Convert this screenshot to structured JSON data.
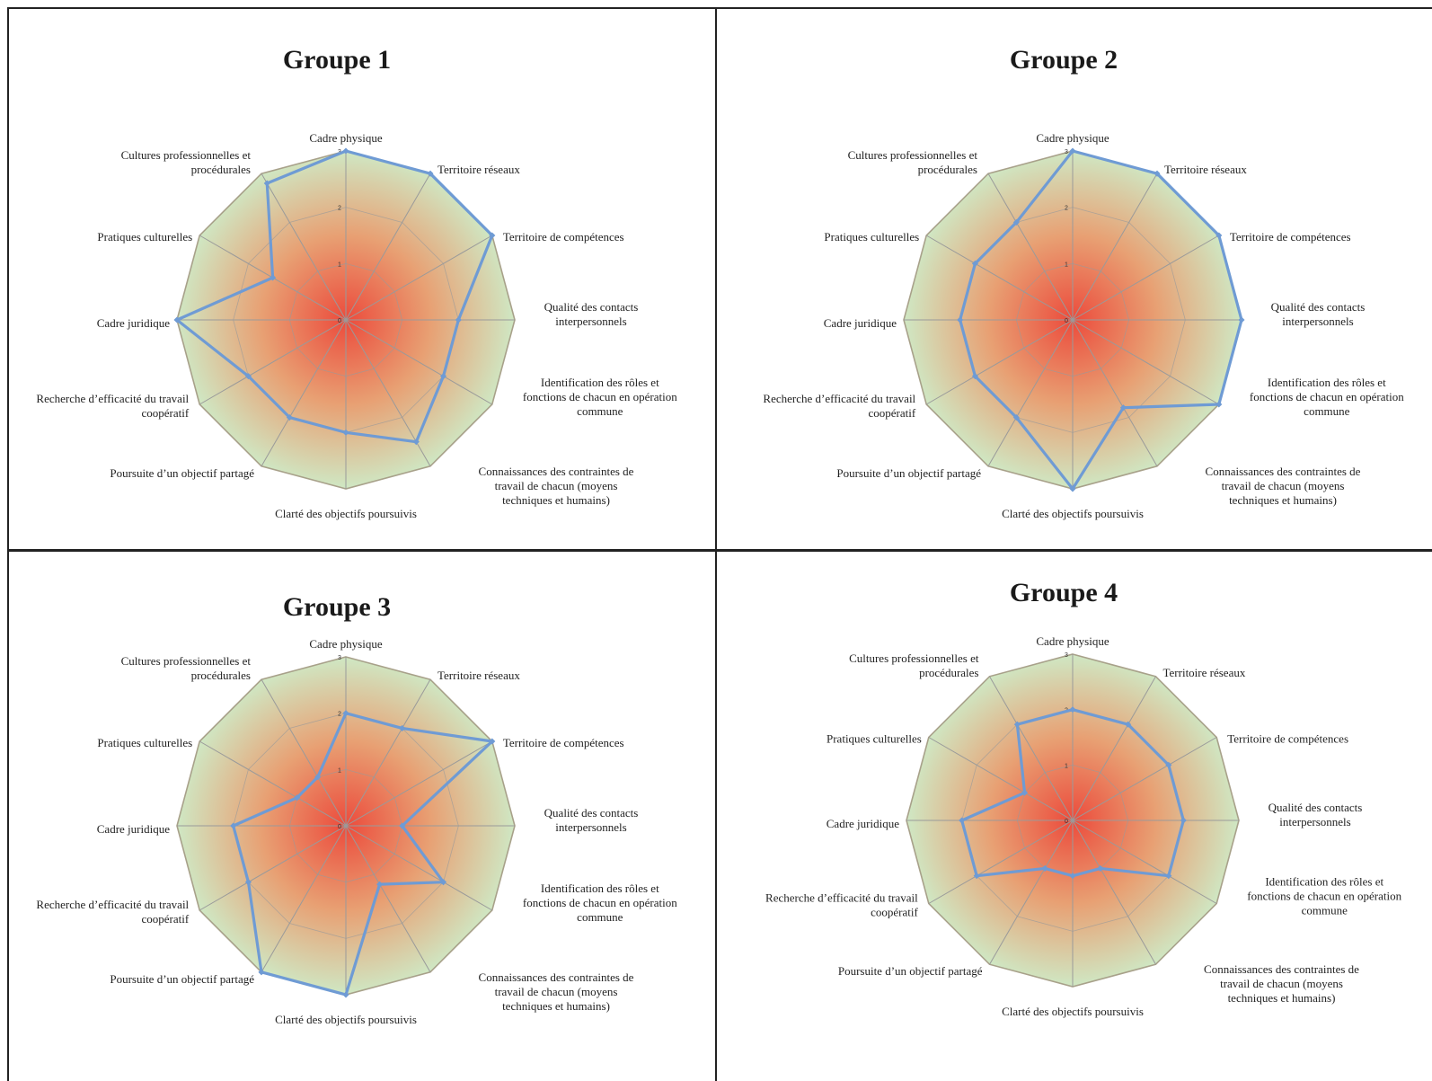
{
  "figure": {
    "colors": {
      "border": "#222222",
      "series_line": "#6f9bd4",
      "outer_ring": "#a8a18a",
      "spoke": "#9a9a9a",
      "fill_center": "#ec4b3c",
      "fill_mid": "#e8a073",
      "fill_edge": "#cfe8c4"
    }
  },
  "chart_data": [
    {
      "type": "radar",
      "title": "Groupe 1",
      "axes": [
        "Cadre physique",
        "Territoire réseaux",
        "Territoire de compétences",
        "Qualité des contacts interpersonnels",
        "Identification des rôles et fonctions de chacun en opération commune",
        "Connaissances des contraintes de travail de chacun (moyens techniques et humains)",
        "Clarté des objectifs poursuivis",
        "Poursuite d’un objectif partagé",
        "Recherche d’efficacité du travail coopératif",
        "Cadre juridique",
        "Pratiques culturelles",
        "Cultures professionnelles et procédurales"
      ],
      "axis_labels": [
        [
          "Cadre physique"
        ],
        [
          "Territoire réseaux"
        ],
        [
          "Territoire de compétences"
        ],
        [
          "Qualité des contacts",
          "interpersonnels"
        ],
        [
          "Identification des rôles et",
          "fonctions de chacun en opération",
          "commune"
        ],
        [
          "Connaissances des contraintes de",
          "travail de chacun (moyens",
          "techniques et humains)"
        ],
        [
          "Clarté des objectifs poursuivis"
        ],
        [
          "Poursuite d’un objectif partagé"
        ],
        [
          "Recherche d’efficacité du travail",
          "coopératif"
        ],
        [
          "Cadre juridique"
        ],
        [
          "Pratiques culturelles"
        ],
        [
          "Cultures professionnelles et",
          "procédurales"
        ]
      ],
      "ticks": [
        "0",
        "1",
        "2",
        "3"
      ],
      "rmax": 3,
      "values": [
        3,
        3,
        3,
        2,
        2,
        2.5,
        2,
        2,
        2,
        3,
        1.5,
        2.8
      ]
    },
    {
      "type": "radar",
      "title": "Groupe 2",
      "axes": [
        "Cadre physique",
        "Territoire réseaux",
        "Territoire de compétences",
        "Qualité des contacts interpersonnels",
        "Identification des rôles et fonctions de chacun en opération commune",
        "Connaissances des contraintes de travail de chacun (moyens techniques et humains)",
        "Clarté des objectifs poursuivis",
        "Poursuite d’un objectif partagé",
        "Recherche d’efficacité du travail coopératif",
        "Cadre juridique",
        "Pratiques culturelles",
        "Cultures professionnelles et procédurales"
      ],
      "axis_labels": [
        [
          "Cadre physique"
        ],
        [
          "Territoire réseaux"
        ],
        [
          "Territoire de compétences"
        ],
        [
          "Qualité des contacts",
          "interpersonnels"
        ],
        [
          "Identification des rôles et",
          "fonctions de chacun en opération",
          "commune"
        ],
        [
          "Connaissances des contraintes de",
          "travail de chacun (moyens",
          "techniques et humains)"
        ],
        [
          "Clarté des objectifs poursuivis"
        ],
        [
          "Poursuite d’un objectif partagé"
        ],
        [
          "Recherche d’efficacité du travail",
          "coopératif"
        ],
        [
          "Cadre juridique"
        ],
        [
          "Pratiques culturelles"
        ],
        [
          "Cultures professionnelles et",
          "procédurales"
        ]
      ],
      "ticks": [
        "0",
        "1",
        "2",
        "3"
      ],
      "rmax": 3,
      "values": [
        3,
        3,
        3,
        3,
        3,
        1.8,
        3,
        2,
        2,
        2,
        2,
        2
      ]
    },
    {
      "type": "radar",
      "title": "Groupe 3",
      "axes": [
        "Cadre physique",
        "Territoire réseaux",
        "Territoire de compétences",
        "Qualité des contacts interpersonnels",
        "Identification des rôles et fonctions de chacun en opération commune",
        "Connaissances des contraintes de travail de chacun (moyens techniques et humains)",
        "Clarté des objectifs poursuivis",
        "Poursuite d’un objectif partagé",
        "Recherche d’efficacité du travail coopératif",
        "Cadre juridique",
        "Pratiques culturelles",
        "Cultures professionnelles et procédurales"
      ],
      "axis_labels": [
        [
          "Cadre physique"
        ],
        [
          "Territoire réseaux"
        ],
        [
          "Territoire de compétences"
        ],
        [
          "Qualité des contacts",
          "interpersonnels"
        ],
        [
          "Identification des rôles et",
          "fonctions de chacun en opération",
          "commune"
        ],
        [
          "Connaissances des contraintes de",
          "travail de chacun (moyens",
          "techniques et humains)"
        ],
        [
          "Clarté des objectifs poursuivis"
        ],
        [
          "Poursuite d’un objectif partagé"
        ],
        [
          "Recherche d’efficacité du travail",
          "coopératif"
        ],
        [
          "Cadre juridique"
        ],
        [
          "Pratiques culturelles"
        ],
        [
          "Cultures professionnelles et",
          "procédurales"
        ]
      ],
      "ticks": [
        "0",
        "1",
        "2",
        "3"
      ],
      "rmax": 3,
      "values": [
        2,
        2,
        3,
        1,
        2,
        1.2,
        3,
        3,
        2,
        2,
        1,
        1
      ]
    },
    {
      "type": "radar",
      "title": "Groupe 4",
      "axes": [
        "Cadre physique",
        "Territoire réseaux",
        "Territoire de compétences",
        "Qualité des contacts interpersonnels",
        "Identification des rôles et fonctions de chacun en opération commune",
        "Connaissances des contraintes de travail de chacun (moyens techniques et humains)",
        "Clarté des objectifs poursuivis",
        "Poursuite d’un objectif partagé",
        "Recherche d’efficacité du travail coopératif",
        "Cadre juridique",
        "Pratiques culturelles",
        "Cultures professionnelles et procédurales"
      ],
      "axis_labels": [
        [
          "Cadre physique"
        ],
        [
          "Territoire réseaux"
        ],
        [
          "Territoire de compétences"
        ],
        [
          "Qualité des contacts",
          "interpersonnels"
        ],
        [
          "Identification des rôles et",
          "fonctions de chacun en opération",
          "commune"
        ],
        [
          "Connaissances des contraintes de",
          "travail de chacun (moyens",
          "techniques et humains)"
        ],
        [
          "Clarté des objectifs poursuivis"
        ],
        [
          "Poursuite d’un objectif partagé"
        ],
        [
          "Recherche d’efficacité du travail",
          "coopératif"
        ],
        [
          "Cadre juridique"
        ],
        [
          "Pratiques culturelles"
        ],
        [
          "Cultures professionnelles et",
          "procédurales"
        ]
      ],
      "ticks": [
        "0",
        "1",
        "2",
        "3"
      ],
      "rmax": 3,
      "values": [
        2,
        2,
        2,
        2,
        2,
        1,
        1,
        1,
        2,
        2,
        1,
        2
      ]
    }
  ]
}
